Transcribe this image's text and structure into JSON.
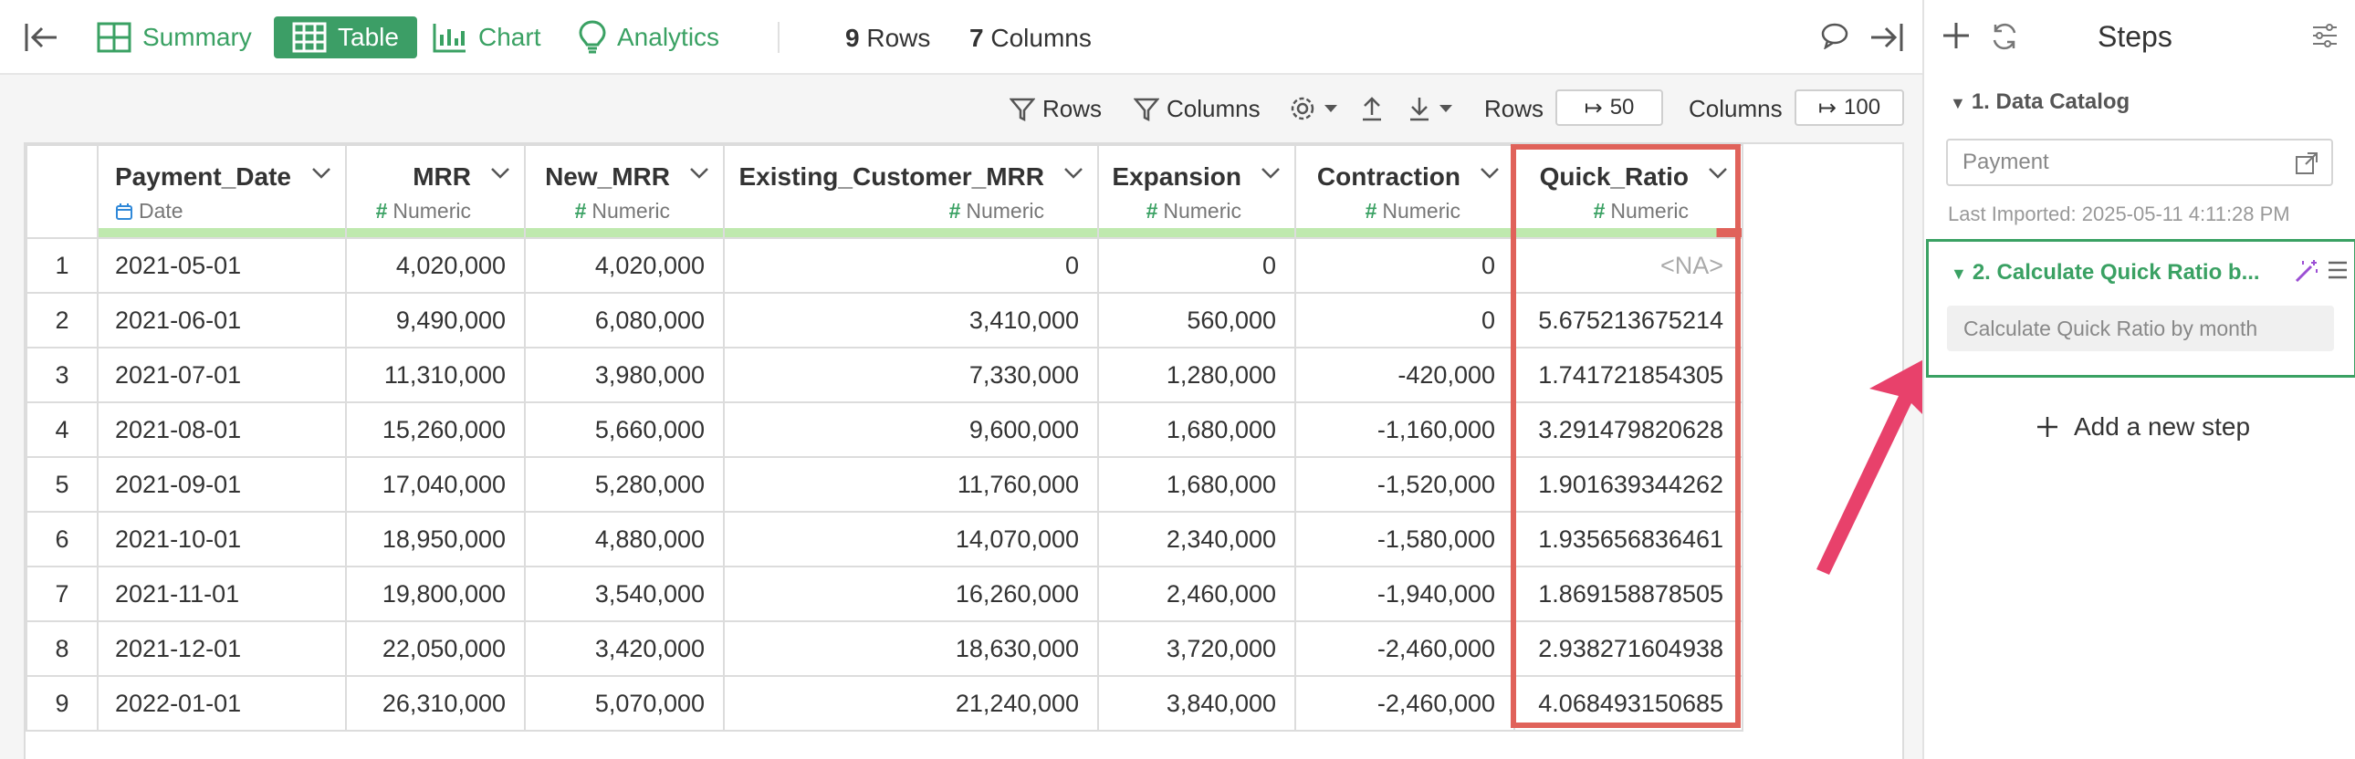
{
  "topbar": {
    "tabs": [
      {
        "label": "Summary",
        "icon": "summary-grid-icon"
      },
      {
        "label": "Table",
        "icon": "table-icon",
        "active": true
      },
      {
        "label": "Chart",
        "icon": "bar-chart-icon"
      },
      {
        "label": "Analytics",
        "icon": "lightbulb-icon"
      }
    ],
    "rows_count": "9",
    "rows_label": "Rows",
    "cols_count": "7",
    "cols_label": "Columns"
  },
  "toolbar": {
    "rows_filter": "Rows",
    "columns_filter": "Columns",
    "rows_label": "Rows",
    "rows_value": "50",
    "columns_label": "Columns",
    "columns_value": "100"
  },
  "table": {
    "columns": [
      {
        "name": "Payment_Date",
        "type": "Date"
      },
      {
        "name": "MRR",
        "type": "Numeric"
      },
      {
        "name": "New_MRR",
        "type": "Numeric"
      },
      {
        "name": "Existing_Customer_MRR",
        "type": "Numeric"
      },
      {
        "name": "Expansion",
        "type": "Numeric"
      },
      {
        "name": "Contraction",
        "type": "Numeric"
      },
      {
        "name": "Quick_Ratio",
        "type": "Numeric"
      }
    ],
    "rows": [
      [
        "1",
        "2021-05-01",
        "4,020,000",
        "4,020,000",
        "0",
        "0",
        "0",
        "<NA>"
      ],
      [
        "2",
        "2021-06-01",
        "9,490,000",
        "6,080,000",
        "3,410,000",
        "560,000",
        "0",
        "5.675213675214"
      ],
      [
        "3",
        "2021-07-01",
        "11,310,000",
        "3,980,000",
        "7,330,000",
        "1,280,000",
        "-420,000",
        "1.741721854305"
      ],
      [
        "4",
        "2021-08-01",
        "15,260,000",
        "5,660,000",
        "9,600,000",
        "1,680,000",
        "-1,160,000",
        "3.291479820628"
      ],
      [
        "5",
        "2021-09-01",
        "17,040,000",
        "5,280,000",
        "11,760,000",
        "1,680,000",
        "-1,520,000",
        "1.901639344262"
      ],
      [
        "6",
        "2021-10-01",
        "18,950,000",
        "4,880,000",
        "14,070,000",
        "2,340,000",
        "-1,580,000",
        "1.935656836461"
      ],
      [
        "7",
        "2021-11-01",
        "19,800,000",
        "3,540,000",
        "16,260,000",
        "2,460,000",
        "-1,940,000",
        "1.869158878505"
      ],
      [
        "8",
        "2021-12-01",
        "22,050,000",
        "3,420,000",
        "18,630,000",
        "3,720,000",
        "-2,460,000",
        "2.938271604938"
      ],
      [
        "9",
        "2022-01-01",
        "26,310,000",
        "5,070,000",
        "21,240,000",
        "3,840,000",
        "-2,460,000",
        "4.068493150685"
      ]
    ],
    "quick_ratio_na_fraction": 0.11
  },
  "steps": {
    "title": "Steps",
    "step1_label": "1. Data Catalog",
    "step1_source": "Payment",
    "last_imported": "Last Imported: 2025-05-11 4:11:28 PM",
    "step2_label": "2. Calculate Quick Ratio b...",
    "step2_description": "Calculate Quick Ratio by month",
    "add_step": "Add a new step"
  },
  "colors": {
    "accent_green": "#3aa163",
    "highlight_red": "#e0625a",
    "arrow_pink": "#e8416b",
    "quality_bar_green": "#bfe9ae"
  }
}
